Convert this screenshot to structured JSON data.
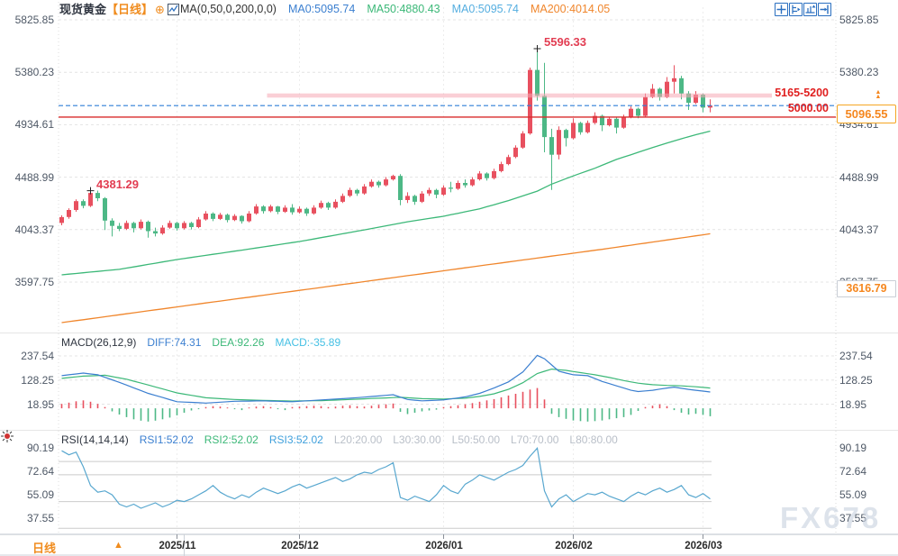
{
  "header": {
    "symbol": "现货黄金",
    "period_tag": "【日线】",
    "expand_icon": "⊕",
    "ma_settings": "MA(0,50,0,200,0,0)",
    "ma_values": [
      {
        "label": "MA0:5095.74",
        "color": "#3b7fd0"
      },
      {
        "label": "MA50:4880.43",
        "color": "#3cb878"
      },
      {
        "label": "MA0:5095.74",
        "color": "#55aee0"
      },
      {
        "label": "MA200:4014.05",
        "color": "#f0862c"
      }
    ]
  },
  "toolbar": {
    "icons": [
      "crosshair-icon",
      "y-axis-zoom-icon",
      "x-axis-zoom-icon",
      "jump-latest-icon"
    ]
  },
  "overlay_labels": {
    "high_annotation": "5596.33",
    "low_annotation": "4381.29",
    "zone_label": "5165-5200",
    "support_label": "5000.00",
    "last_price": "5096.55",
    "ma_tag": "3616.79",
    "arrows": "▲▲"
  },
  "macd_panel": {
    "title": "MACD(26,12,9)",
    "values": [
      {
        "label": "DIFF:74.31",
        "color": "#3b7fd0"
      },
      {
        "label": "DEA:92.26",
        "color": "#3cb878"
      },
      {
        "label": "MACD:-35.89",
        "color": "#45c0e4"
      }
    ]
  },
  "rsi_panel": {
    "title": "RSI(14,14,14)",
    "values": [
      {
        "label": "RSI1:52.02",
        "color": "#3b7fd0"
      },
      {
        "label": "RSI2:52.02",
        "color": "#3cb878"
      },
      {
        "label": "RSI3:52.02",
        "color": "#40a0dc"
      },
      {
        "label": "L20:20.00",
        "color": "#b9bfc8"
      },
      {
        "label": "L30:30.00",
        "color": "#b9bfc8"
      },
      {
        "label": "L50:50.00",
        "color": "#b9bfc8"
      },
      {
        "label": "L70:70.00",
        "color": "#b9bfc8"
      },
      {
        "label": "L80:80.00",
        "color": "#b9bfc8"
      }
    ]
  },
  "bottom": {
    "period_label": "日线",
    "period_arrow": "▲",
    "dates": [
      "2025/11",
      "2025/12",
      "2026/01",
      "2026/02",
      "2026/03"
    ]
  },
  "watermark": "FX678",
  "palette": {
    "up": "#e8505f",
    "down": "#4db886",
    "ma50": "#3cb878",
    "ma200": "#f0862c",
    "zone": "#f5a8b4",
    "support_line": "#d92b2b",
    "last_price_line": "#2f7fd6",
    "diff": "#3b7fd0",
    "dea": "#3cb878",
    "rsi": "#58a7cf",
    "accent_orange": "#f5871f"
  },
  "chart_data": {
    "type": "candlestick",
    "title": "现货黄金 日线 (Spot Gold, Daily)",
    "price_axis": {
      "ticks": [
        5825.85,
        5380.23,
        4934.61,
        4488.99,
        4043.37,
        3597.75
      ]
    },
    "x_axis": {
      "tick_labels": [
        "2025/11",
        "2025/12",
        "2026/01",
        "2026/02",
        "2026/03"
      ],
      "tick_indices": [
        16,
        33,
        53,
        71,
        89
      ]
    },
    "candles": [
      [
        4100,
        4165,
        4080,
        4150
      ],
      [
        4150,
        4225,
        4135,
        4210
      ],
      [
        4210,
        4300,
        4195,
        4285
      ],
      [
        4285,
        4300,
        4225,
        4245
      ],
      [
        4245,
        4381.29,
        4235,
        4355
      ],
      [
        4355,
        4375,
        4285,
        4310
      ],
      [
        4310,
        4320,
        4040,
        4120
      ],
      [
        4120,
        4140,
        3985,
        4075
      ],
      [
        4075,
        4100,
        4030,
        4050
      ],
      [
        4050,
        4120,
        4040,
        4100
      ],
      [
        4100,
        4110,
        4020,
        4055
      ],
      [
        4055,
        4130,
        4045,
        4110
      ],
      [
        4110,
        4120,
        3975,
        4030
      ],
      [
        4030,
        4060,
        3985,
        4010
      ],
      [
        4010,
        4080,
        4000,
        4060
      ],
      [
        4060,
        4120,
        4050,
        4100
      ],
      [
        4100,
        4110,
        4035,
        4055
      ],
      [
        4055,
        4115,
        4045,
        4100
      ],
      [
        4100,
        4110,
        4045,
        4065
      ],
      [
        4065,
        4150,
        4055,
        4130
      ],
      [
        4130,
        4200,
        4120,
        4180
      ],
      [
        4180,
        4190,
        4115,
        4135
      ],
      [
        4135,
        4185,
        4125,
        4170
      ],
      [
        4170,
        4180,
        4105,
        4125
      ],
      [
        4125,
        4175,
        4115,
        4160
      ],
      [
        4160,
        4165,
        4095,
        4115
      ],
      [
        4115,
        4200,
        4105,
        4180
      ],
      [
        4180,
        4260,
        4170,
        4240
      ],
      [
        4240,
        4250,
        4180,
        4200
      ],
      [
        4200,
        4255,
        4190,
        4240
      ],
      [
        4240,
        4245,
        4175,
        4195
      ],
      [
        4195,
        4250,
        4185,
        4230
      ],
      [
        4230,
        4260,
        4170,
        4190
      ],
      [
        4190,
        4240,
        4180,
        4220
      ],
      [
        4220,
        4230,
        4160,
        4180
      ],
      [
        4180,
        4250,
        4170,
        4230
      ],
      [
        4230,
        4290,
        4220,
        4270
      ],
      [
        4270,
        4280,
        4210,
        4230
      ],
      [
        4230,
        4300,
        4220,
        4280
      ],
      [
        4280,
        4350,
        4270,
        4330
      ],
      [
        4330,
        4400,
        4320,
        4380
      ],
      [
        4380,
        4390,
        4330,
        4350
      ],
      [
        4350,
        4430,
        4340,
        4410
      ],
      [
        4410,
        4470,
        4400,
        4450
      ],
      [
        4450,
        4460,
        4400,
        4420
      ],
      [
        4420,
        4490,
        4410,
        4470
      ],
      [
        4470,
        4510,
        4460,
        4500
      ],
      [
        4500,
        4515,
        4250,
        4295
      ],
      [
        4295,
        4360,
        4270,
        4330
      ],
      [
        4330,
        4340,
        4255,
        4280
      ],
      [
        4280,
        4370,
        4270,
        4350
      ],
      [
        4350,
        4400,
        4330,
        4380
      ],
      [
        4380,
        4390,
        4310,
        4340
      ],
      [
        4340,
        4420,
        4330,
        4400
      ],
      [
        4400,
        4450,
        4360,
        4390
      ],
      [
        4390,
        4460,
        4380,
        4440
      ],
      [
        4440,
        4470,
        4400,
        4420
      ],
      [
        4420,
        4490,
        4410,
        4470
      ],
      [
        4470,
        4540,
        4460,
        4520
      ],
      [
        4520,
        4530,
        4460,
        4480
      ],
      [
        4480,
        4560,
        4470,
        4540
      ],
      [
        4540,
        4620,
        4530,
        4600
      ],
      [
        4600,
        4680,
        4590,
        4660
      ],
      [
        4660,
        4760,
        4650,
        4740
      ],
      [
        4740,
        4880,
        4730,
        4860
      ],
      [
        4860,
        5420,
        4850,
        5400
      ],
      [
        5400,
        5596.33,
        5140,
        5180
      ],
      [
        5180,
        5460,
        4700,
        4830
      ],
      [
        4830,
        4900,
        4380,
        4680
      ],
      [
        4680,
        4920,
        4640,
        4890
      ],
      [
        4890,
        4900,
        4750,
        4820
      ],
      [
        4820,
        4990,
        4810,
        4950
      ],
      [
        4950,
        4960,
        4850,
        4870
      ],
      [
        4870,
        4970,
        4860,
        4950
      ],
      [
        4950,
        5040,
        4940,
        5010
      ],
      [
        5010,
        5020,
        4880,
        4930
      ],
      [
        4930,
        5000,
        4920,
        4985
      ],
      [
        4985,
        4995,
        4860,
        4910
      ],
      [
        4910,
        5020,
        4900,
        5000
      ],
      [
        5000,
        5090,
        4990,
        5070
      ],
      [
        5070,
        5080,
        4990,
        5010
      ],
      [
        5010,
        5200,
        5000,
        5170
      ],
      [
        5170,
        5280,
        5160,
        5240
      ],
      [
        5240,
        5250,
        5140,
        5170
      ],
      [
        5170,
        5340,
        5160,
        5300
      ],
      [
        5300,
        5440,
        5200,
        5330
      ],
      [
        5330,
        5350,
        5150,
        5200
      ],
      [
        5200,
        5220,
        5060,
        5120
      ],
      [
        5120,
        5220,
        5110,
        5190
      ],
      [
        5190,
        5200,
        5040,
        5080
      ],
      [
        5080,
        5150,
        5040,
        5096.55
      ]
    ],
    "ma50_anchors": [
      [
        0,
        3659
      ],
      [
        8,
        3706
      ],
      [
        16,
        3789
      ],
      [
        24,
        3860
      ],
      [
        33,
        3942
      ],
      [
        41,
        4030
      ],
      [
        48,
        4110
      ],
      [
        53,
        4157
      ],
      [
        58,
        4220
      ],
      [
        62,
        4290
      ],
      [
        66,
        4370
      ],
      [
        68,
        4430
      ],
      [
        71,
        4500
      ],
      [
        74,
        4565
      ],
      [
        77,
        4640
      ],
      [
        80,
        4700
      ],
      [
        83,
        4760
      ],
      [
        86,
        4815
      ],
      [
        88,
        4850
      ],
      [
        90,
        4880
      ]
    ],
    "ma200_anchors": [
      [
        0,
        3253
      ],
      [
        20,
        3420
      ],
      [
        40,
        3585
      ],
      [
        60,
        3752
      ],
      [
        75,
        3876
      ],
      [
        90,
        4008
      ]
    ],
    "overlays": {
      "resistance_zone": {
        "from": 5165,
        "to": 5200,
        "label": "5165-5200",
        "start_index": 28.5
      },
      "support_line": {
        "value": 5000.0,
        "label": "5000.00"
      },
      "last_price_line": {
        "value": 5096.55
      },
      "high_marker": {
        "index": 66,
        "value": 5596.33
      },
      "low_marker": {
        "index": 4,
        "value": 4381.29
      },
      "ma_tag_value": 3616.79
    },
    "macd": {
      "ticks": [
        237.54,
        128.25,
        18.95
      ],
      "diff_anchors": [
        [
          0,
          148
        ],
        [
          3,
          160
        ],
        [
          5,
          152
        ],
        [
          8,
          118
        ],
        [
          12,
          68
        ],
        [
          16,
          30
        ],
        [
          20,
          24
        ],
        [
          24,
          32
        ],
        [
          28,
          34
        ],
        [
          32,
          30
        ],
        [
          36,
          38
        ],
        [
          40,
          46
        ],
        [
          44,
          56
        ],
        [
          46,
          62
        ],
        [
          48,
          40
        ],
        [
          50,
          34
        ],
        [
          53,
          38
        ],
        [
          56,
          52
        ],
        [
          58,
          68
        ],
        [
          60,
          92
        ],
        [
          62,
          120
        ],
        [
          64,
          165
        ],
        [
          66,
          240
        ],
        [
          67,
          225
        ],
        [
          69,
          168
        ],
        [
          71,
          152
        ],
        [
          73,
          148
        ],
        [
          75,
          122
        ],
        [
          77,
          102
        ],
        [
          79,
          82
        ],
        [
          80,
          76
        ],
        [
          82,
          82
        ],
        [
          84,
          92
        ],
        [
          85,
          96
        ],
        [
          87,
          86
        ],
        [
          89,
          78
        ],
        [
          90,
          74.31
        ]
      ],
      "dea_anchors": [
        [
          0,
          136
        ],
        [
          3,
          146
        ],
        [
          6,
          150
        ],
        [
          9,
          132
        ],
        [
          12,
          106
        ],
        [
          16,
          70
        ],
        [
          20,
          48
        ],
        [
          24,
          40
        ],
        [
          28,
          36
        ],
        [
          32,
          33
        ],
        [
          36,
          35
        ],
        [
          40,
          40
        ],
        [
          44,
          46
        ],
        [
          47,
          50
        ],
        [
          50,
          44
        ],
        [
          53,
          42
        ],
        [
          56,
          46
        ],
        [
          58,
          54
        ],
        [
          60,
          66
        ],
        [
          62,
          86
        ],
        [
          64,
          116
        ],
        [
          66,
          158
        ],
        [
          68,
          178
        ],
        [
          70,
          172
        ],
        [
          72,
          162
        ],
        [
          74,
          152
        ],
        [
          76,
          140
        ],
        [
          78,
          126
        ],
        [
          80,
          114
        ],
        [
          82,
          107
        ],
        [
          84,
          104
        ],
        [
          86,
          102
        ],
        [
          88,
          98
        ],
        [
          90,
          92.26
        ]
      ],
      "hist": [
        20,
        26,
        32,
        36,
        30,
        20,
        6,
        -14,
        -28,
        -40,
        -50,
        -56,
        -60,
        -56,
        -50,
        -42,
        -32,
        -20,
        -10,
        -2,
        6,
        10,
        8,
        4,
        -4,
        -8,
        4,
        8,
        10,
        6,
        -4,
        -8,
        6,
        8,
        10,
        12,
        10,
        6,
        8,
        12,
        14,
        10,
        8,
        12,
        16,
        18,
        22,
        -16,
        -26,
        -20,
        -14,
        -10,
        -6,
        6,
        10,
        14,
        18,
        24,
        30,
        36,
        42,
        50,
        58,
        66,
        75,
        85,
        92,
        40,
        -25,
        -40,
        -48,
        -55,
        -58,
        -60,
        -58,
        -55,
        -50,
        -45,
        -40,
        -30,
        -12,
        6,
        12,
        18,
        10,
        -8,
        -20,
        -28,
        -25,
        -30,
        -35.89
      ]
    },
    "rsi": {
      "ticks": [
        90.19,
        72.64,
        55.09,
        37.55
      ],
      "levels": [
        80,
        70,
        50,
        30,
        20
      ],
      "values": [
        88,
        85,
        87,
        76,
        62,
        57,
        58,
        55,
        48,
        46,
        48,
        45,
        47,
        49,
        46,
        48,
        51,
        50,
        52,
        55,
        58,
        62,
        57,
        54,
        52,
        55,
        53,
        57,
        60,
        58,
        56,
        58,
        61,
        63,
        60,
        62,
        64,
        66,
        68,
        65,
        67,
        70,
        72,
        71,
        74,
        76,
        79,
        53,
        51,
        54,
        52,
        50,
        55,
        62,
        58,
        56,
        63,
        66,
        70,
        68,
        66,
        69,
        72,
        74,
        77,
        84,
        90,
        58,
        46,
        52,
        55,
        50,
        53,
        56,
        55,
        57,
        54,
        52,
        50,
        54,
        57,
        55,
        58,
        60,
        57,
        59,
        62,
        55,
        53,
        56,
        52.02
      ]
    }
  }
}
